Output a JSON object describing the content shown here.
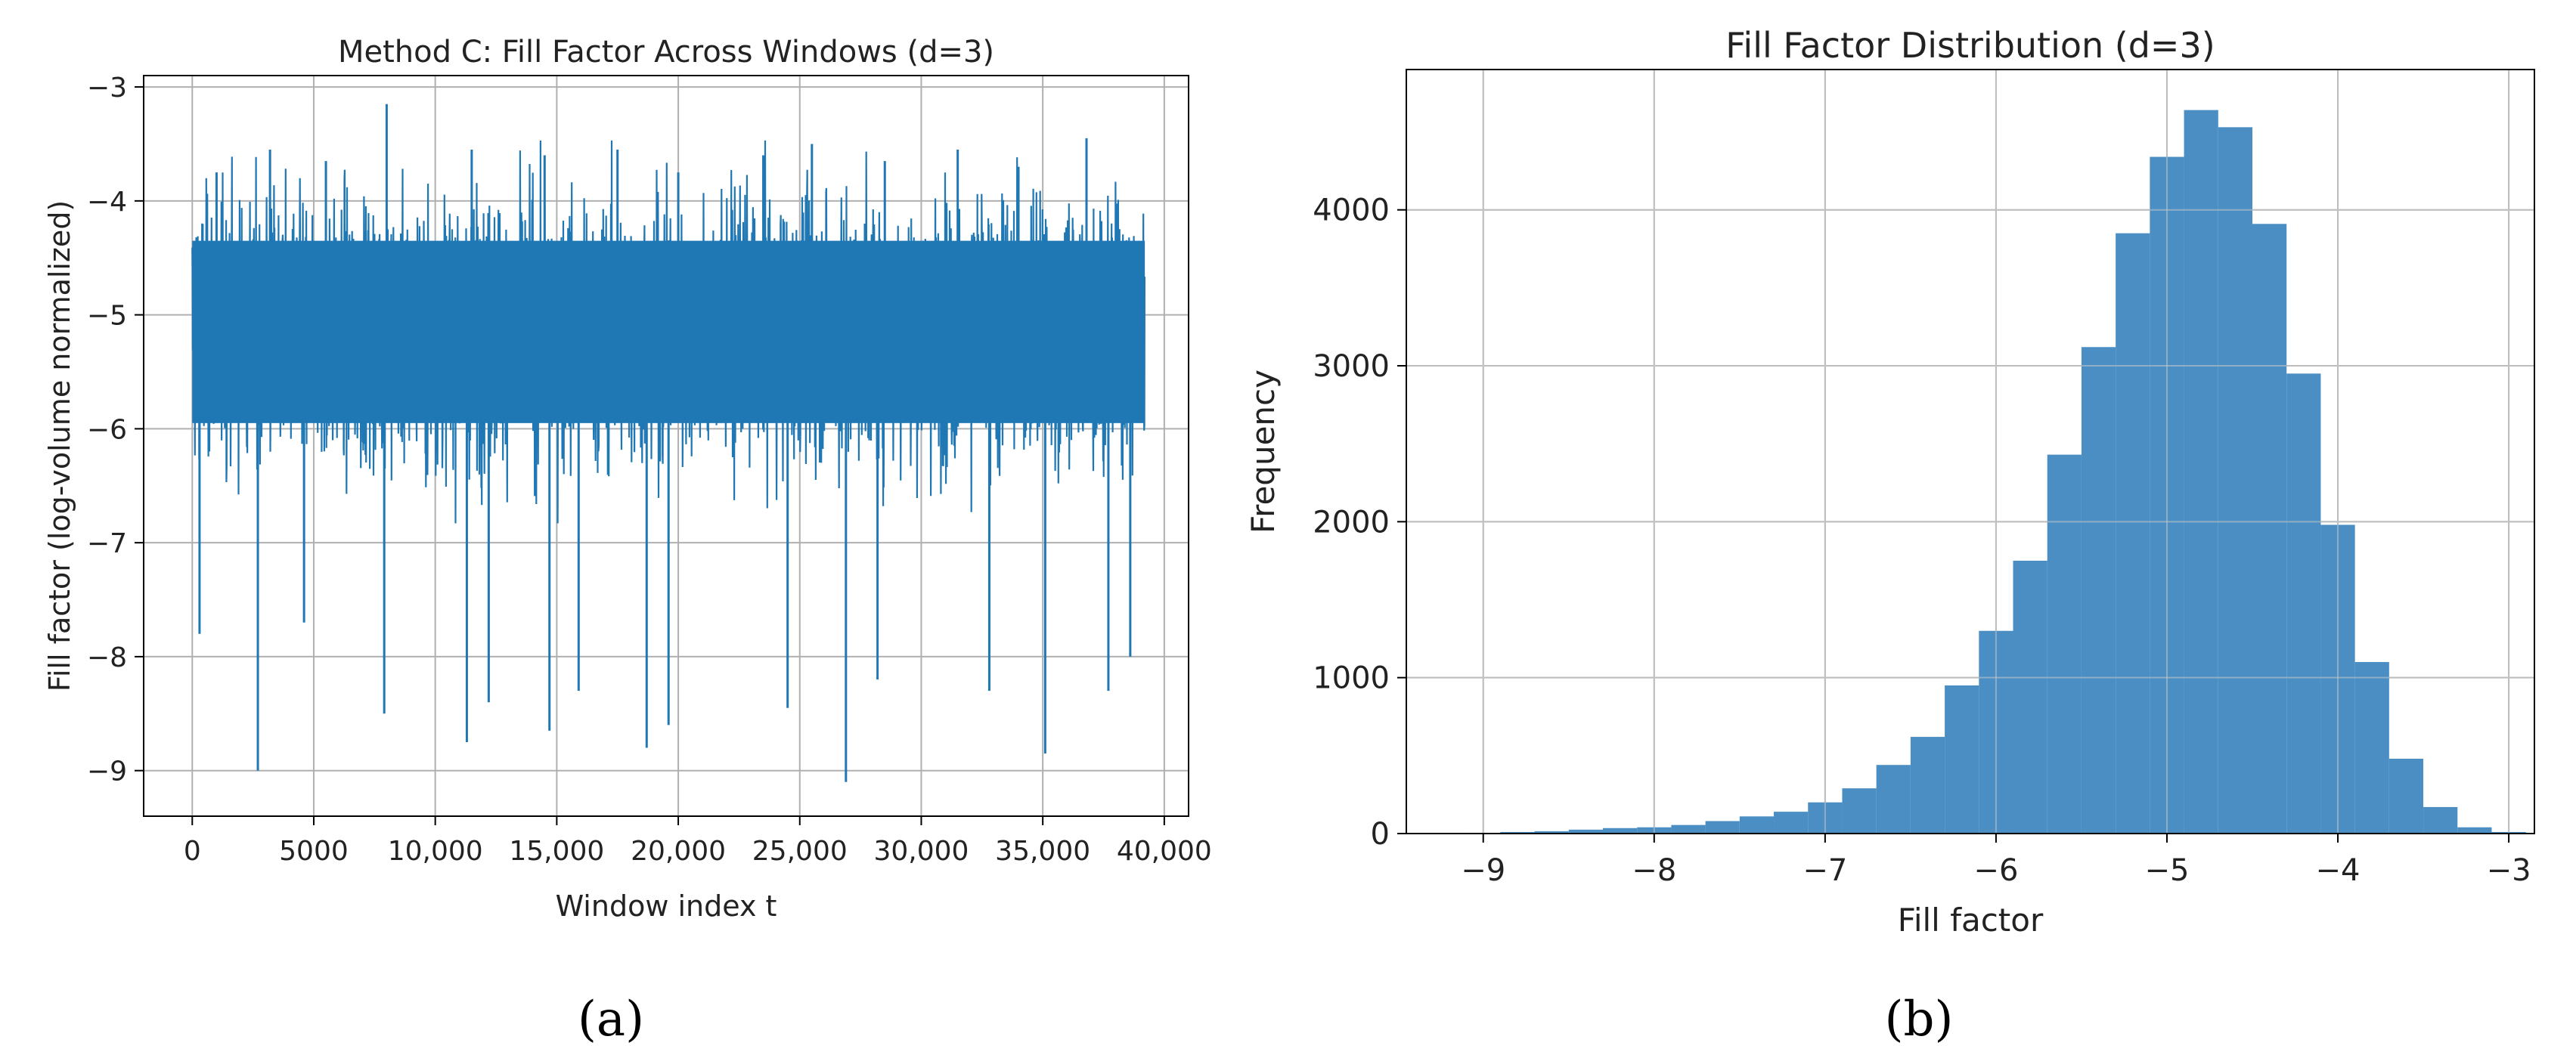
{
  "panels": {
    "a": "(a)",
    "b": "(b)"
  },
  "chart_data": [
    {
      "id": "a",
      "type": "line",
      "title": "Method C: Fill Factor Across Windows (d=3)",
      "xlabel": "Window index t",
      "ylabel": "Fill factor (log-volume normalized)",
      "xlim": [
        -2000,
        41000
      ],
      "ylim": [
        -9.4,
        -2.9
      ],
      "xticks": [
        0,
        5000,
        10000,
        15000,
        20000,
        25000,
        30000,
        35000,
        40000
      ],
      "xtick_labels": [
        "0",
        "5000",
        "10,000",
        "15,000",
        "20,000",
        "25,000",
        "30,000",
        "35,000",
        "40,000"
      ],
      "yticks": [
        -9,
        -8,
        -7,
        -6,
        -5,
        -4,
        -3
      ],
      "ytick_labels": [
        "−9",
        "−8",
        "−7",
        "−6",
        "−5",
        "−4",
        "−3"
      ],
      "grid": true,
      "color": "#1f77b4",
      "series": [
        {
          "x_range": [
            0,
            39200
          ],
          "band_upper": -4.1,
          "band_lower": -6.2,
          "upper_spikes": [
            [
              1000,
              -3.75
            ],
            [
              3200,
              -3.55
            ],
            [
              5500,
              -3.65
            ],
            [
              8000,
              -3.15
            ],
            [
              11500,
              -3.55
            ],
            [
              14500,
              -3.6
            ],
            [
              17500,
              -3.55
            ],
            [
              20000,
              -3.75
            ],
            [
              23500,
              -3.6
            ],
            [
              25500,
              -3.5
            ],
            [
              28500,
              -3.65
            ],
            [
              31500,
              -3.55
            ],
            [
              34000,
              -3.7
            ],
            [
              36800,
              -3.45
            ]
          ],
          "lower_spikes": [
            [
              300,
              -7.8
            ],
            [
              2700,
              -9.0
            ],
            [
              4600,
              -7.7
            ],
            [
              7900,
              -8.5
            ],
            [
              11300,
              -8.75
            ],
            [
              12200,
              -8.4
            ],
            [
              14700,
              -8.65
            ],
            [
              15900,
              -8.3
            ],
            [
              18700,
              -8.8
            ],
            [
              19600,
              -8.6
            ],
            [
              24500,
              -8.45
            ],
            [
              26900,
              -9.1
            ],
            [
              28200,
              -8.2
            ],
            [
              32800,
              -8.3
            ],
            [
              35100,
              -8.85
            ],
            [
              37700,
              -8.3
            ],
            [
              38600,
              -8.0
            ]
          ]
        }
      ]
    },
    {
      "id": "b",
      "type": "bar",
      "title": "Fill Factor Distribution (d=3)",
      "xlabel": "Fill factor",
      "ylabel": "Frequency",
      "xlim": [
        -9.45,
        -2.85
      ],
      "ylim": [
        0,
        4900
      ],
      "xticks": [
        -9,
        -8,
        -7,
        -6,
        -5,
        -4,
        -3
      ],
      "xtick_labels": [
        "−9",
        "−8",
        "−7",
        "−6",
        "−5",
        "−4",
        "−3"
      ],
      "yticks": [
        0,
        1000,
        2000,
        3000,
        4000
      ],
      "ytick_labels": [
        "0",
        "1000",
        "2000",
        "3000",
        "4000"
      ],
      "grid": true,
      "color": "#4a8ec3",
      "bin_start": -9.1,
      "bin_width": 0.2,
      "values": [
        5,
        10,
        15,
        25,
        35,
        40,
        55,
        80,
        110,
        140,
        200,
        290,
        440,
        620,
        950,
        1300,
        1750,
        2430,
        3120,
        3850,
        4340,
        4640,
        4530,
        3910,
        2950,
        1980,
        1100,
        480,
        170,
        40,
        10
      ]
    }
  ]
}
